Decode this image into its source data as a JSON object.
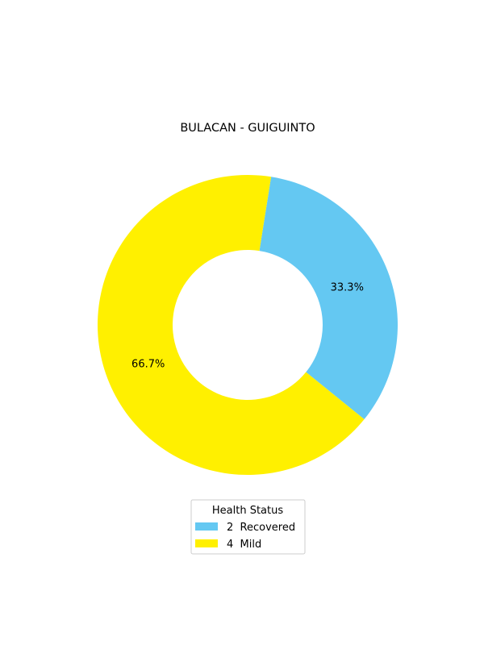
{
  "chart_data": {
    "type": "pie",
    "title": "BULACAN - GUIGUINTO",
    "donut": true,
    "slices": [
      {
        "label": "Recovered",
        "count": "2",
        "value": 2,
        "percent_label": "33.3%",
        "color": "#64c8f2"
      },
      {
        "label": "Mild",
        "count": "4",
        "value": 4,
        "percent_label": "66.7%",
        "color": "#fff000"
      }
    ],
    "legend": {
      "title": "Health Status",
      "placement": "bottom-center",
      "entries": [
        {
          "count": "2",
          "label": "Recovered",
          "color": "#64c8f2"
        },
        {
          "count": "4",
          "label": "Mild",
          "color": "#fff000"
        }
      ]
    }
  }
}
